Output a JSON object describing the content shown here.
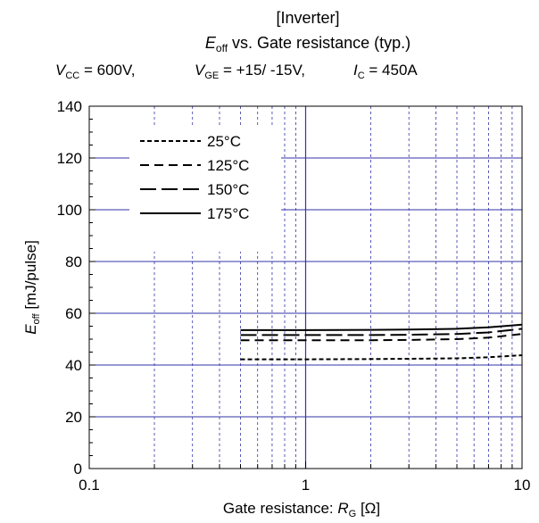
{
  "header": {
    "line1": "[Inverter]",
    "title_sym": "E",
    "title_sub": "off",
    "title_rest": " vs. Gate resistance  (typ.)",
    "cond_vcc_sym": "V",
    "cond_vcc_sub": "CC",
    "cond_vcc_val": " = 600V,",
    "cond_vge_sym": "V",
    "cond_vge_sub": "GE",
    "cond_vge_val": " = +15/ -15V,",
    "cond_ic_sym": "I",
    "cond_ic_sub": "C",
    "cond_ic_val": " = 450A"
  },
  "axes": {
    "ylabel_sym": "E",
    "ylabel_sub": "off",
    "ylabel_rest": " [mJ/pulse]",
    "xlabel_pre": "Gate resistance: ",
    "xlabel_sym": "R",
    "xlabel_sub": "G",
    "xlabel_rest": " [Ω]"
  },
  "colors": {
    "grid": "#3333aa",
    "curve": "#000000",
    "axis": "#000000"
  },
  "chart_data": {
    "type": "line",
    "x_scale": "log",
    "xlim": [
      0.1,
      10
    ],
    "ylim": [
      0,
      140
    ],
    "y_ticks": [
      0,
      20,
      40,
      60,
      80,
      100,
      120,
      140
    ],
    "y_tick_labels": [
      "0",
      "20",
      "40",
      "60",
      "80",
      "100",
      "120",
      "140"
    ],
    "x_ticks": [
      0.1,
      1,
      10
    ],
    "x_tick_labels": [
      "0.1",
      "1",
      "10"
    ],
    "grid": true,
    "legend_position": "top-left",
    "series": [
      {
        "name": "25°C",
        "dash": "5,3",
        "x": [
          0.5,
          1,
          2,
          3,
          5,
          7,
          10
        ],
        "y": [
          42.2,
          42.2,
          42.3,
          42.4,
          42.6,
          43.0,
          43.8
        ]
      },
      {
        "name": "125°C",
        "dash": "10,6",
        "x": [
          0.5,
          1,
          2,
          3,
          5,
          7,
          10
        ],
        "y": [
          49.6,
          49.6,
          49.6,
          49.7,
          50.0,
          50.6,
          52.0
        ]
      },
      {
        "name": "150°C",
        "dash": "18,6",
        "x": [
          0.5,
          1,
          2,
          3,
          5,
          7,
          10
        ],
        "y": [
          51.6,
          51.6,
          51.6,
          51.7,
          52.0,
          52.6,
          54.0
        ]
      },
      {
        "name": "175°C",
        "dash": "",
        "x": [
          0.5,
          1,
          2,
          3,
          5,
          7,
          10
        ],
        "y": [
          53.5,
          53.5,
          53.6,
          53.7,
          54.0,
          54.6,
          55.6
        ]
      }
    ]
  }
}
